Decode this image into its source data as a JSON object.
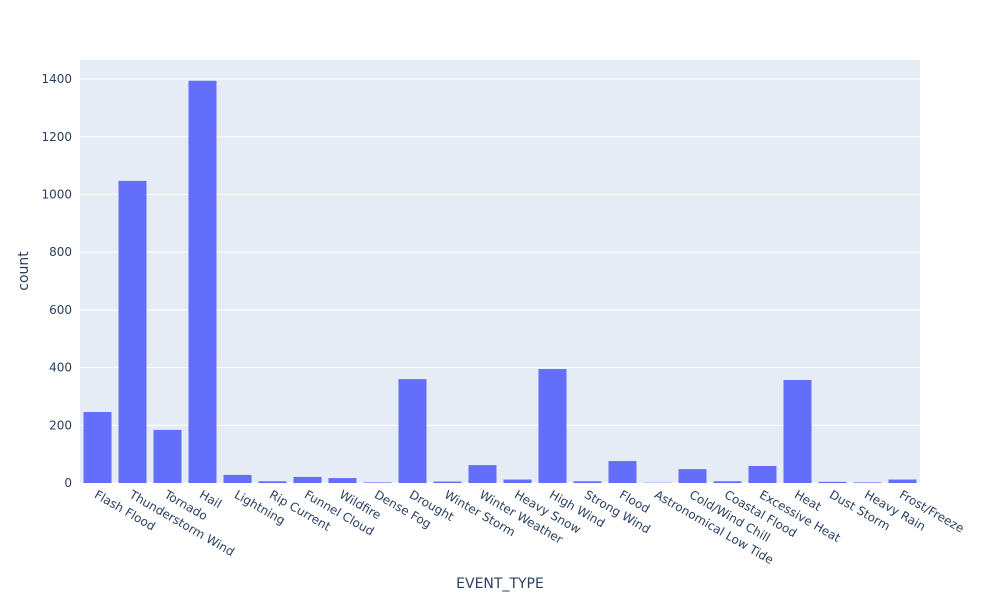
{
  "chart_data": {
    "type": "bar",
    "x_label": "EVENT_TYPE",
    "y_label": "count",
    "categories": [
      "Flash Flood",
      "Thunderstorm Wind",
      "Tornado",
      "Hail",
      "Lightning",
      "Rip Current",
      "Funnel Cloud",
      "Wildfire",
      "Dense Fog",
      "Drought",
      "Winter Storm",
      "Winter Weather",
      "Heavy Snow",
      "High Wind",
      "Strong Wind",
      "Flood",
      "Astronomical Low Tide",
      "Cold/Wind Chill",
      "Coastal Flood",
      "Excessive Heat",
      "Heat",
      "Dust Storm",
      "Heavy Rain",
      "Frost/Freeze"
    ],
    "values": [
      246,
      1047,
      184,
      1394,
      28,
      6,
      21,
      17,
      2,
      360,
      5,
      62,
      12,
      395,
      6,
      76,
      1,
      48,
      6,
      59,
      357,
      4,
      2,
      12
    ],
    "color": "#636efa",
    "ylim": [
      0,
      1466
    ],
    "yticks": [
      0,
      200,
      400,
      600,
      800,
      1000,
      1200,
      1400
    ],
    "grid": true
  }
}
